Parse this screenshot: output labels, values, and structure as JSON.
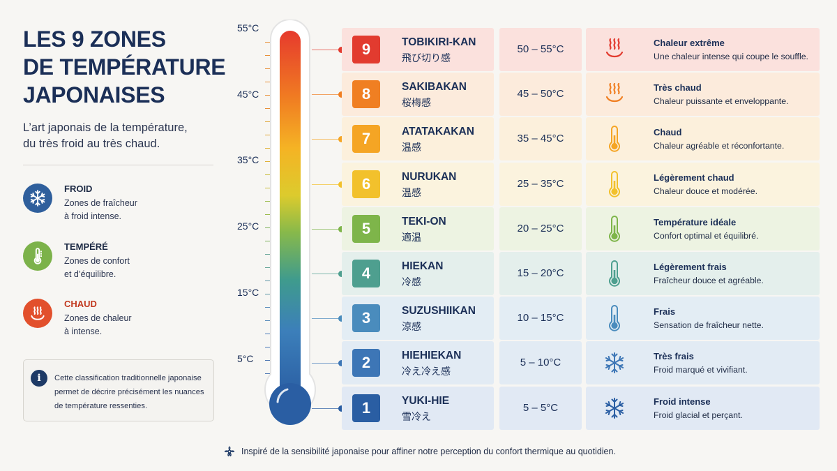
{
  "title": {
    "line1": "LES 9 ZONES",
    "line2": "DE TEMPÉRATURE",
    "line3": "JAPONAISES"
  },
  "subtitle": {
    "line1": "L’art japonais de la température,",
    "line2": "du très froid au très chaud."
  },
  "categories": [
    {
      "name": "FROID",
      "desc1": "Zones de fraîcheur",
      "desc2": "à froid intense.",
      "icon": "snowflake-icon",
      "color": "#2f5f9c"
    },
    {
      "name": "TEMPÉRÉ",
      "desc1": "Zones de confort",
      "desc2": "et d’équilibre.",
      "icon": "thermometer-icon",
      "color": "#7cb24a"
    },
    {
      "name": "CHAUD",
      "desc1": "Zones de chaleur",
      "desc2": "à intense.",
      "icon": "heat-waves-icon",
      "color": "#e2502c"
    }
  ],
  "note": {
    "icon": "info-icon",
    "line1": "Cette classification traditionnelle japonaise",
    "line2": "permet de décrire précisément les nuances",
    "line3": "de température ressenties."
  },
  "scale_labels": [
    "55°C",
    "45°C",
    "35°C",
    "25°C",
    "15°C",
    "5°C"
  ],
  "zones": [
    {
      "num": "9",
      "name": "TOBIKIRI-KAN",
      "jp": "飛び切り感",
      "range": "50 – 55°C",
      "label": "Chaleur extrême",
      "desc": "Une chaleur intense qui coupe le souffle.",
      "color": "#e23b2f",
      "bg": "#fbe1dd",
      "icon": "heat-waves-icon"
    },
    {
      "num": "8",
      "name": "SAKIBAKAN",
      "jp": "桜梅感",
      "range": "45 – 50°C",
      "label": "Très chaud",
      "desc": "Chaleur puissante et enveloppante.",
      "color": "#f07f22",
      "bg": "#fcebdc",
      "icon": "heat-waves-icon"
    },
    {
      "num": "7",
      "name": "ATATAKAKAN",
      "jp": "温感",
      "range": "35 – 45°C",
      "label": "Chaud",
      "desc": "Chaleur agréable et réconfortante.",
      "color": "#f5a524",
      "bg": "#fcf0dc",
      "icon": "thermometer-icon"
    },
    {
      "num": "6",
      "name": "NURUKAN",
      "jp": "温感",
      "range": "25 – 35°C",
      "label": "Légèrement chaud",
      "desc": "Chaleur douce et modérée.",
      "color": "#f2c12c",
      "bg": "#fbf3de",
      "icon": "thermometer-icon"
    },
    {
      "num": "5",
      "name": "TEKI-ON",
      "jp": "適温",
      "range": "20 – 25°C",
      "label": "Température idéale",
      "desc": "Confort optimal et équilibré.",
      "color": "#7eb54a",
      "bg": "#edf3e2",
      "icon": "thermometer-icon"
    },
    {
      "num": "4",
      "name": "HIEKAN",
      "jp": "冷感",
      "range": "15 – 20°C",
      "label": "Légèrement frais",
      "desc": "Fraîcheur douce et agréable.",
      "color": "#4e9f8f",
      "bg": "#e4efec",
      "icon": "thermometer-icon"
    },
    {
      "num": "3",
      "name": "SUZUSHIIKAN",
      "jp": "涼感",
      "range": "10 – 15°C",
      "label": "Frais",
      "desc": "Sensation de fraîcheur nette.",
      "color": "#4a8cbd",
      "bg": "#e3edf4",
      "icon": "thermometer-icon"
    },
    {
      "num": "2",
      "name": "HIEHIEKAN",
      "jp": "冷え冷え感",
      "range": "5 – 10°C",
      "label": "Très frais",
      "desc": "Froid marqué et vivifiant.",
      "color": "#3d76b6",
      "bg": "#e2ebf4",
      "icon": "snowflake-icon"
    },
    {
      "num": "1",
      "name": "YUKI-HIE",
      "jp": "雪冷え",
      "range": "5 – 5°C",
      "label": "Froid intense",
      "desc": "Froid glacial et perçant.",
      "color": "#2a5ea3",
      "bg": "#e1e9f4",
      "icon": "snowflake-icon"
    }
  ],
  "footer": {
    "icon": "flower-icon",
    "text": "Inspiré de la sensibilité japonaise pour affiner notre perception du confort thermique au quotidien."
  }
}
